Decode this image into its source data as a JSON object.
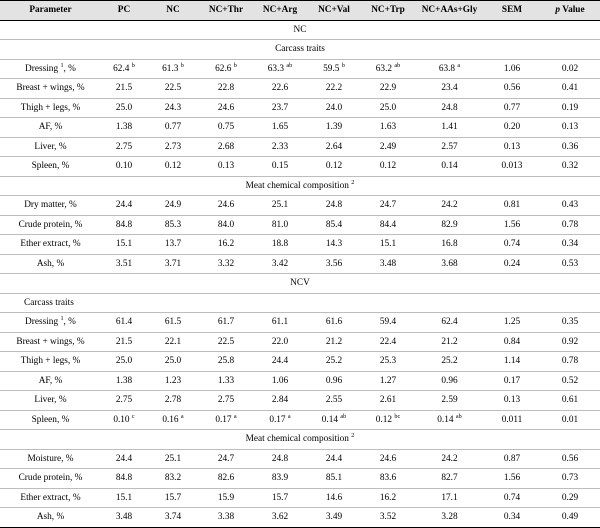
{
  "headers": [
    "Parameter",
    "PC",
    "NC",
    "NC+Thr",
    "NC+Arg",
    "NC+Val",
    "NC+Trp",
    "NC+AAs+Gly",
    "SEM",
    "p Value"
  ],
  "headers_italic_index": 9,
  "sections": [
    {
      "title": "NC",
      "groups": [
        {
          "title": "Carcass traits",
          "title_align": "center",
          "rows": [
            {
              "param": "Dressing",
              "param_sup": "1",
              "param_suffix": ", %",
              "values": [
                "62.4",
                "61.3",
                "62.6",
                "63.3",
                "59.5",
                "63.2",
                "63.8"
              ],
              "sups": [
                "b",
                "b",
                "b",
                "ab",
                "b",
                "ab",
                "a"
              ],
              "sem": "1.06",
              "p": "0.02"
            },
            {
              "param": "Breast + wings, %",
              "values": [
                "21.5",
                "22.5",
                "22.8",
                "22.6",
                "22.2",
                "22.9",
                "23.4"
              ],
              "sem": "0.56",
              "p": "0.41"
            },
            {
              "param": "Thigh + legs, %",
              "values": [
                "25.0",
                "24.3",
                "24.6",
                "23.7",
                "24.0",
                "25.0",
                "24.8"
              ],
              "sem": "0.77",
              "p": "0.19"
            },
            {
              "param": "AF, %",
              "values": [
                "1.38",
                "0.77",
                "0.75",
                "1.65",
                "1.39",
                "1.63",
                "1.41"
              ],
              "sem": "0.20",
              "p": "0.13"
            },
            {
              "param": "Liver, %",
              "values": [
                "2.75",
                "2.73",
                "2.68",
                "2.33",
                "2.64",
                "2.49",
                "2.57"
              ],
              "sem": "0.13",
              "p": "0.36"
            },
            {
              "param": "Spleen, %",
              "values": [
                "0.10",
                "0.12",
                "0.13",
                "0.15",
                "0.12",
                "0.12",
                "0.14"
              ],
              "sem": "0.013",
              "p": "0.32"
            }
          ]
        },
        {
          "title": "Meat chemical composition",
          "title_sup": "2",
          "title_align": "center",
          "rows": [
            {
              "param": "Dry matter, %",
              "values": [
                "24.4",
                "24.9",
                "24.6",
                "25.1",
                "24.8",
                "24.7",
                "24.2"
              ],
              "sem": "0.81",
              "p": "0.43"
            },
            {
              "param": "Crude protein, %",
              "values": [
                "84.8",
                "85.3",
                "84.0",
                "81.0",
                "85.4",
                "84.4",
                "82.9"
              ],
              "sem": "1.56",
              "p": "0.78"
            },
            {
              "param": "Ether extract, %",
              "values": [
                "15.1",
                "13.7",
                "16.2",
                "18.8",
                "14.3",
                "15.1",
                "16.8"
              ],
              "sem": "0.74",
              "p": "0.34"
            },
            {
              "param": "Ash, %",
              "values": [
                "3.51",
                "3.71",
                "3.32",
                "3.42",
                "3.56",
                "3.48",
                "3.68"
              ],
              "sem": "0.24",
              "p": "0.53"
            }
          ]
        }
      ]
    },
    {
      "title": "NCV",
      "groups": [
        {
          "title": "Carcass traits",
          "title_align": "left",
          "rows": [
            {
              "param": "Dressing",
              "param_sup": "1",
              "param_suffix": ", %",
              "values": [
                "61.4",
                "61.5",
                "61.7",
                "61.1",
                "61.6",
                "59.4",
                "62.4"
              ],
              "sem": "1.25",
              "p": "0.35"
            },
            {
              "param": "Breast + wings, %",
              "values": [
                "21.5",
                "22.1",
                "22.5",
                "22.0",
                "21.2",
                "22.4",
                "21.2"
              ],
              "sem": "0.84",
              "p": "0.92"
            },
            {
              "param": "Thigh + legs, %",
              "values": [
                "25.0",
                "25.0",
                "25.8",
                "24.4",
                "25.2",
                "25.3",
                "25.2"
              ],
              "sem": "1.14",
              "p": "0.78"
            },
            {
              "param": "AF, %",
              "values": [
                "1.38",
                "1.23",
                "1.33",
                "1.06",
                "0.96",
                "1.27",
                "0.96"
              ],
              "sem": "0.17",
              "p": "0.52"
            },
            {
              "param": "Liver, %",
              "values": [
                "2.75",
                "2.78",
                "2.75",
                "2.84",
                "2.55",
                "2.61",
                "2.59"
              ],
              "sem": "0.13",
              "p": "0.61"
            },
            {
              "param": "Spleen, %",
              "values": [
                "0.10",
                "0.16",
                "0.17",
                "0.17",
                "0.14",
                "0.12",
                "0.14"
              ],
              "sups": [
                "c",
                "a",
                "a",
                "a",
                "ab",
                "bc",
                "ab"
              ],
              "sem": "0.011",
              "p": "0.01"
            }
          ]
        },
        {
          "title": "Meat chemical composition",
          "title_sup": "2",
          "title_align": "center",
          "rows": [
            {
              "param": "Moisture, %",
              "values": [
                "24.4",
                "25.1",
                "24.7",
                "24.8",
                "24.4",
                "24.6",
                "24.2"
              ],
              "sem": "0.87",
              "p": "0.56"
            },
            {
              "param": "Crude protein, %",
              "values": [
                "84.8",
                "83.2",
                "82.6",
                "83.9",
                "85.1",
                "83.6",
                "82.7"
              ],
              "sem": "1.56",
              "p": "0.73"
            },
            {
              "param": "Ether extract, %",
              "values": [
                "15.1",
                "15.7",
                "15.9",
                "15.7",
                "14.6",
                "16.2",
                "17.1"
              ],
              "sem": "0.74",
              "p": "0.29"
            },
            {
              "param": "Ash, %",
              "values": [
                "3.48",
                "3.74",
                "3.38",
                "3.62",
                "3.49",
                "3.52",
                "3.28"
              ],
              "sem": "0.34",
              "p": "0.49"
            }
          ]
        }
      ]
    }
  ]
}
